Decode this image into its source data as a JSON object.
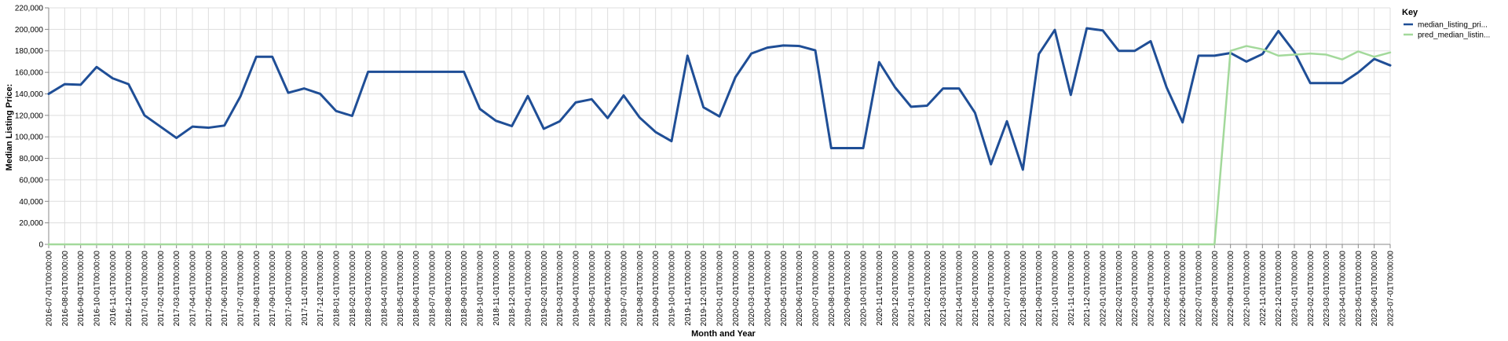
{
  "chart_data": {
    "type": "line",
    "xlabel": "Month and Year",
    "ylabel": "Median Listing Price:",
    "ylim": [
      0,
      220000
    ],
    "y_ticks": [
      "0",
      "20,000",
      "40,000",
      "60,000",
      "80,000",
      "100,000",
      "120,000",
      "140,000",
      "160,000",
      "180,000",
      "200,000",
      "220,000"
    ],
    "grid": true,
    "legend": {
      "title": "Key",
      "placement": "top-right"
    },
    "x": [
      "2016-07-01T00:00:00",
      "2016-08-01T00:00:00",
      "2016-09-01T00:00:00",
      "2016-10-01T00:00:00",
      "2016-11-01T00:00:00",
      "2016-12-01T00:00:00",
      "2017-01-01T00:00:00",
      "2017-02-01T00:00:00",
      "2017-03-01T00:00:00",
      "2017-04-01T00:00:00",
      "2017-05-01T00:00:00",
      "2017-06-01T00:00:00",
      "2017-07-01T00:00:00",
      "2017-08-01T00:00:00",
      "2017-09-01T00:00:00",
      "2017-10-01T00:00:00",
      "2017-11-01T00:00:00",
      "2017-12-01T00:00:00",
      "2018-01-01T00:00:00",
      "2018-02-01T00:00:00",
      "2018-03-01T00:00:00",
      "2018-04-01T00:00:00",
      "2018-05-01T00:00:00",
      "2018-06-01T00:00:00",
      "2018-07-01T00:00:00",
      "2018-08-01T00:00:00",
      "2018-09-01T00:00:00",
      "2018-10-01T00:00:00",
      "2018-11-01T00:00:00",
      "2018-12-01T00:00:00",
      "2019-01-01T00:00:00",
      "2019-02-01T00:00:00",
      "2019-03-01T00:00:00",
      "2019-04-01T00:00:00",
      "2019-05-01T00:00:00",
      "2019-06-01T00:00:00",
      "2019-07-01T00:00:00",
      "2019-08-01T00:00:00",
      "2019-09-01T00:00:00",
      "2019-10-01T00:00:00",
      "2019-11-01T00:00:00",
      "2019-12-01T00:00:00",
      "2020-01-01T00:00:00",
      "2020-02-01T00:00:00",
      "2020-03-01T00:00:00",
      "2020-04-01T00:00:00",
      "2020-05-01T00:00:00",
      "2020-06-01T00:00:00",
      "2020-07-01T00:00:00",
      "2020-08-01T00:00:00",
      "2020-09-01T00:00:00",
      "2020-10-01T00:00:00",
      "2020-11-01T00:00:00",
      "2020-12-01T00:00:00",
      "2021-01-01T00:00:00",
      "2021-02-01T00:00:00",
      "2021-03-01T00:00:00",
      "2021-04-01T00:00:00",
      "2021-05-01T00:00:00",
      "2021-06-01T00:00:00",
      "2021-07-01T00:00:00",
      "2021-08-01T00:00:00",
      "2021-09-01T00:00:00",
      "2021-10-01T00:00:00",
      "2021-11-01T00:00:00",
      "2021-12-01T00:00:00",
      "2022-01-01T00:00:00",
      "2022-02-01T00:00:00",
      "2022-03-01T00:00:00",
      "2022-04-01T00:00:00",
      "2022-05-01T00:00:00",
      "2022-06-01T00:00:00",
      "2022-07-01T00:00:00",
      "2022-08-01T00:00:00",
      "2022-09-01T00:00:00",
      "2022-10-01T00:00:00",
      "2022-11-01T00:00:00",
      "2022-12-01T00:00:00",
      "2023-01-01T00:00:00",
      "2023-02-01T00:00:00",
      "2023-03-01T00:00:00",
      "2023-04-01T00:00:00",
      "2023-05-01T00:00:00",
      "2023-06-01T00:00:00",
      "2023-07-01T00:00:00"
    ],
    "series": [
      {
        "name": "median_listing_pri...",
        "color": "#1f4e96",
        "values": [
          140000,
          149000,
          148500,
          165000,
          154500,
          149000,
          120000,
          109500,
          99000,
          109500,
          108500,
          110500,
          137500,
          174500,
          174500,
          141000,
          145000,
          140000,
          124000,
          119500,
          160500,
          160500,
          160500,
          160500,
          160500,
          160500,
          160500,
          126000,
          115000,
          110000,
          138000,
          107500,
          114500,
          132000,
          135000,
          117500,
          138500,
          118000,
          104500,
          96000,
          175500,
          127500,
          119000,
          155500,
          177500,
          183000,
          185000,
          184500,
          180500,
          89500,
          89500,
          89500,
          169500,
          146000,
          128000,
          129000,
          145000,
          145000,
          122500,
          74500,
          114500,
          69500,
          177000,
          199500,
          139000,
          201000,
          199000,
          180000,
          180000,
          189000,
          146000,
          113500,
          175500,
          175500,
          178000,
          170000,
          177000,
          198500,
          179000,
          150000,
          150000,
          150000,
          160000,
          172500,
          166500
        ]
      },
      {
        "name": "pred_median_listin...",
        "color": "#a3d99b",
        "values": [
          0,
          0,
          0,
          0,
          0,
          0,
          0,
          0,
          0,
          0,
          0,
          0,
          0,
          0,
          0,
          0,
          0,
          0,
          0,
          0,
          0,
          0,
          0,
          0,
          0,
          0,
          0,
          0,
          0,
          0,
          0,
          0,
          0,
          0,
          0,
          0,
          0,
          0,
          0,
          0,
          0,
          0,
          0,
          0,
          0,
          0,
          0,
          0,
          0,
          0,
          0,
          0,
          0,
          0,
          0,
          0,
          0,
          0,
          0,
          0,
          0,
          0,
          0,
          0,
          0,
          0,
          0,
          0,
          0,
          0,
          0,
          0,
          0,
          0,
          180000,
          184500,
          181500,
          175500,
          176500,
          177500,
          176500,
          172000,
          179500,
          174500,
          178500
        ]
      }
    ]
  }
}
